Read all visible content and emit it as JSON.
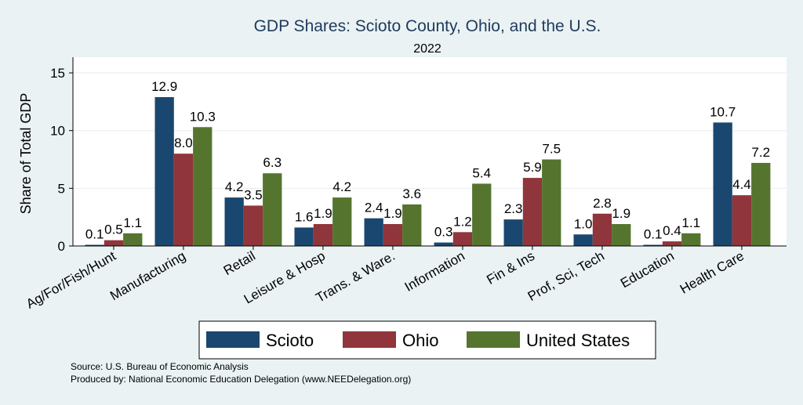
{
  "chart_data": {
    "type": "bar",
    "title": "GDP Shares: Scioto County, Ohio, and the U.S.",
    "subtitle": "2022",
    "xlabel": "",
    "ylabel": "Share of Total GDP",
    "ylim": [
      0,
      16
    ],
    "yticks": [
      0,
      5,
      10,
      15
    ],
    "grid": true,
    "legend_placement": "bottom",
    "categories": [
      "Ag/For/Fish/Hunt",
      "Manufacturing",
      "Retail",
      "Leisure & Hosp",
      "Trans. & Ware.",
      "Information",
      "Fin & Ins",
      "Prof, Sci, Tech",
      "Education",
      "Health Care"
    ],
    "series": [
      {
        "name": "Scioto",
        "color": "#1a476f",
        "values": [
          0.1,
          12.9,
          4.2,
          1.6,
          2.4,
          0.3,
          2.3,
          1.0,
          0.1,
          10.7
        ]
      },
      {
        "name": "Ohio",
        "color": "#90353b",
        "values": [
          0.5,
          8.0,
          3.5,
          1.9,
          1.9,
          1.2,
          5.9,
          2.8,
          0.4,
          4.4
        ]
      },
      {
        "name": "United States",
        "color": "#55752f",
        "values": [
          1.1,
          10.3,
          6.3,
          4.2,
          3.6,
          5.4,
          7.5,
          1.9,
          1.1,
          7.2
        ]
      }
    ],
    "notes": [
      "Source: U.S. Bureau of Economic Analysis",
      "Produced by: National Economic Education Delegation (www.NEEDelegation.org)"
    ]
  }
}
